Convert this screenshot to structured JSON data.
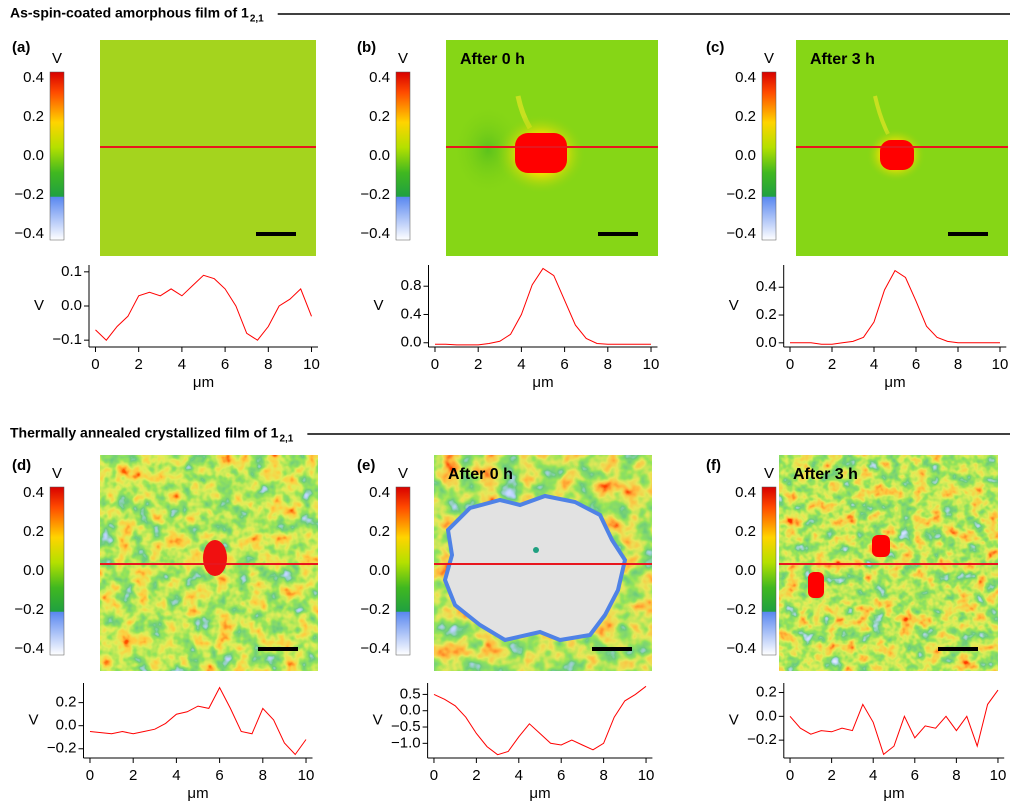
{
  "sections": [
    {
      "title": "As-spin-coated amorphous film of 1",
      "title_sub": "2,1"
    },
    {
      "title": "Thermally annealed crystallized film of 1",
      "title_sub": "2,1"
    }
  ],
  "maps": [
    {
      "label": "(a)",
      "colorbar_label": "V",
      "clim": [
        -0.43,
        0.43
      ],
      "colorbar_ticks": [
        0.4,
        0.2,
        {
          "value": 0,
          "label": "0.0"
        },
        {
          "value": -0.2,
          "label": "−0.2"
        },
        {
          "value": -0.4,
          "label": "−0.4"
        }
      ]
    },
    {
      "label": "(b)",
      "overlay": "After 0 h",
      "colorbar_label": "V",
      "clim": [
        -0.43,
        0.43
      ],
      "colorbar_ticks": [
        0.4,
        0.2,
        {
          "value": 0,
          "label": "0.0"
        },
        {
          "value": -0.2,
          "label": "−0.2"
        },
        {
          "value": -0.4,
          "label": "−0.4"
        }
      ]
    },
    {
      "label": "(c)",
      "overlay": "After 3 h",
      "colorbar_label": "V",
      "clim": [
        -0.43,
        0.43
      ],
      "colorbar_ticks": [
        0.4,
        0.2,
        {
          "value": 0,
          "label": "0.0"
        },
        {
          "value": -0.2,
          "label": "−0.2"
        },
        {
          "value": -0.4,
          "label": "−0.4"
        }
      ]
    },
    {
      "label": "(d)",
      "colorbar_label": "V",
      "clim": [
        -0.43,
        0.43
      ],
      "colorbar_ticks": [
        0.4,
        0.2,
        {
          "value": 0,
          "label": "0.0"
        },
        {
          "value": -0.2,
          "label": "−0.2"
        },
        {
          "value": -0.4,
          "label": "−0.4"
        }
      ]
    },
    {
      "label": "(e)",
      "overlay": "After 0 h",
      "colorbar_label": "V",
      "clim": [
        -0.43,
        0.43
      ],
      "colorbar_ticks": [
        0.4,
        0.2,
        {
          "value": 0,
          "label": "0.0"
        },
        {
          "value": -0.2,
          "label": "−0.2"
        },
        {
          "value": -0.4,
          "label": "−0.4"
        }
      ]
    },
    {
      "label": "(f)",
      "overlay": "After 3 h",
      "colorbar_label": "V",
      "clim": [
        -0.43,
        0.43
      ],
      "colorbar_ticks": [
        0.4,
        0.2,
        {
          "value": 0,
          "label": "0.0"
        },
        {
          "value": -0.2,
          "label": "−0.2"
        },
        {
          "value": -0.4,
          "label": "−0.4"
        }
      ]
    }
  ],
  "chart_data": [
    {
      "type": "line",
      "xlabel": "μm",
      "ylabel": "V",
      "color": "#ff0000",
      "x": [
        0,
        0.5,
        1,
        1.5,
        2,
        2.5,
        3,
        3.5,
        4,
        4.5,
        5,
        5.5,
        6,
        6.5,
        7,
        7.5,
        8,
        8.5,
        9,
        9.5,
        10
      ],
      "values": [
        -0.07,
        -0.1,
        -0.06,
        -0.03,
        0.03,
        0.04,
        0.03,
        0.05,
        0.03,
        0.06,
        0.09,
        0.08,
        0.05,
        0.0,
        -0.08,
        -0.1,
        -0.06,
        0.0,
        0.02,
        0.05,
        -0.03
      ],
      "xlim": [
        -0.3,
        10.3
      ],
      "ylim": [
        -0.12,
        0.12
      ],
      "xticks": [
        0,
        2,
        4,
        6,
        8,
        10
      ],
      "yticks": [
        0.1,
        {
          "value": 0,
          "label": "0.0"
        },
        {
          "value": -0.1,
          "label": "−0.1"
        }
      ]
    },
    {
      "type": "line",
      "xlabel": "μm",
      "ylabel": "V",
      "color": "#ff0000",
      "x": [
        0,
        0.5,
        1,
        1.5,
        2,
        2.5,
        3,
        3.5,
        4,
        4.5,
        5,
        5.5,
        6,
        6.5,
        7,
        7.5,
        8,
        8.5,
        9,
        9.5,
        10
      ],
      "values": [
        -0.02,
        -0.02,
        -0.03,
        -0.03,
        -0.03,
        -0.01,
        0.02,
        0.12,
        0.4,
        0.82,
        1.05,
        0.95,
        0.6,
        0.25,
        0.06,
        -0.01,
        -0.02,
        -0.02,
        -0.02,
        -0.02,
        -0.02
      ],
      "xlim": [
        -0.3,
        10.3
      ],
      "ylim": [
        -0.06,
        1.1
      ],
      "xticks": [
        0,
        2,
        4,
        6,
        8,
        10
      ],
      "yticks": [
        0.8,
        0.4,
        {
          "value": 0,
          "label": "0.0"
        }
      ]
    },
    {
      "type": "line",
      "xlabel": "μm",
      "ylabel": "V",
      "color": "#ff0000",
      "x": [
        0,
        0.5,
        1,
        1.5,
        2,
        2.5,
        3,
        3.5,
        4,
        4.5,
        5,
        5.5,
        6,
        6.5,
        7,
        7.5,
        8,
        8.5,
        9,
        9.5,
        10
      ],
      "values": [
        0.0,
        0.0,
        0.0,
        -0.01,
        -0.01,
        0.0,
        0.01,
        0.04,
        0.15,
        0.38,
        0.52,
        0.47,
        0.3,
        0.12,
        0.04,
        0.01,
        0.0,
        0.0,
        0.0,
        0.0,
        0.0
      ],
      "xlim": [
        -0.3,
        10.3
      ],
      "ylim": [
        -0.03,
        0.56
      ],
      "xticks": [
        0,
        2,
        4,
        6,
        8,
        10
      ],
      "yticks": [
        0.4,
        0.2,
        {
          "value": 0,
          "label": "0.0"
        }
      ]
    },
    {
      "type": "line",
      "xlabel": "μm",
      "ylabel": "V",
      "color": "#ff0000",
      "x": [
        0,
        0.5,
        1,
        1.5,
        2,
        2.5,
        3,
        3.5,
        4,
        4.5,
        5,
        5.5,
        6,
        6.5,
        7,
        7.5,
        8,
        8.5,
        9,
        9.5,
        10
      ],
      "values": [
        -0.05,
        -0.06,
        -0.07,
        -0.05,
        -0.07,
        -0.05,
        -0.03,
        0.02,
        0.1,
        0.12,
        0.17,
        0.15,
        0.33,
        0.15,
        -0.05,
        -0.07,
        0.15,
        0.05,
        -0.15,
        -0.25,
        -0.12
      ],
      "xlim": [
        -0.3,
        10.3
      ],
      "ylim": [
        -0.28,
        0.37
      ],
      "xticks": [
        0,
        2,
        4,
        6,
        8,
        10
      ],
      "yticks": [
        0.2,
        {
          "value": 0,
          "label": "0.0"
        },
        {
          "value": -0.2,
          "label": "−0.2"
        }
      ]
    },
    {
      "type": "line",
      "xlabel": "μm",
      "ylabel": "V",
      "color": "#ff0000",
      "x": [
        0,
        0.5,
        1,
        1.5,
        2,
        2.5,
        3,
        3.5,
        4,
        4.5,
        5,
        5.5,
        6,
        6.5,
        7,
        7.5,
        8,
        8.5,
        9,
        9.5,
        10
      ],
      "values": [
        0.5,
        0.35,
        0.15,
        -0.2,
        -0.7,
        -1.1,
        -1.35,
        -1.25,
        -0.8,
        -0.4,
        -0.7,
        -1.0,
        -1.05,
        -0.9,
        -1.05,
        -1.2,
        -1.0,
        -0.2,
        0.3,
        0.5,
        0.75
      ],
      "xlim": [
        -0.3,
        10.3
      ],
      "ylim": [
        -1.45,
        0.85
      ],
      "xticks": [
        0,
        2,
        4,
        6,
        8,
        10
      ],
      "yticks": [
        0.5,
        {
          "value": 0,
          "label": "0.0"
        },
        {
          "value": -0.5,
          "label": "−0.5"
        },
        {
          "value": -1,
          "label": "−1.0"
        }
      ]
    },
    {
      "type": "line",
      "xlabel": "μm",
      "ylabel": "V",
      "color": "#ff0000",
      "x": [
        0,
        0.5,
        1,
        1.5,
        2,
        2.5,
        3,
        3.5,
        4,
        4.5,
        5,
        5.5,
        6,
        6.5,
        7,
        7.5,
        8,
        8.5,
        9,
        9.5,
        10
      ],
      "values": [
        0.0,
        -0.1,
        -0.15,
        -0.12,
        -0.13,
        -0.1,
        -0.12,
        0.1,
        -0.05,
        -0.32,
        -0.25,
        0.0,
        -0.18,
        -0.08,
        -0.1,
        0.0,
        -0.12,
        0.0,
        -0.25,
        0.1,
        0.22
      ],
      "xlim": [
        -0.3,
        10.3
      ],
      "ylim": [
        -0.35,
        0.28
      ],
      "xticks": [
        0,
        2,
        4,
        6,
        8,
        10
      ],
      "yticks": [
        0.2,
        {
          "value": 0,
          "label": "0.0"
        },
        {
          "value": -0.2,
          "label": "−0.2"
        }
      ]
    }
  ]
}
